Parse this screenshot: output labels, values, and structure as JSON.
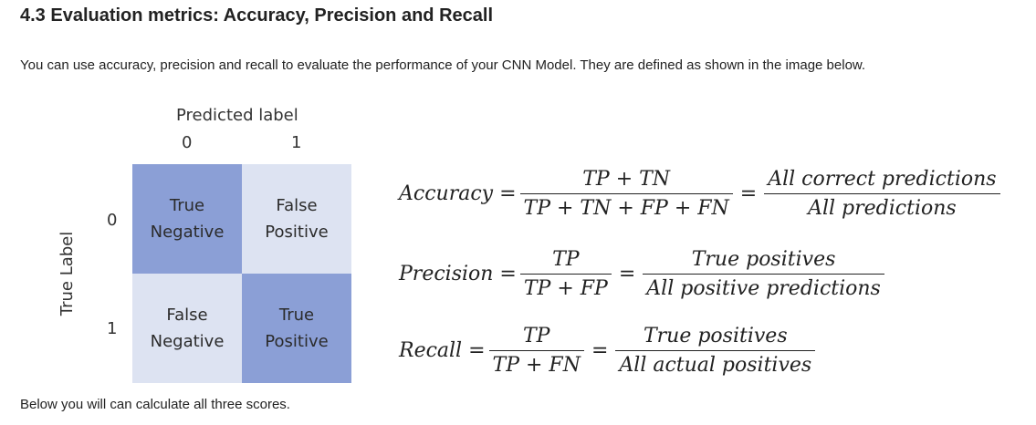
{
  "heading": "4.3 Evaluation metrics: Accuracy, Precision and Recall",
  "intro": "You can use accuracy, precision and recall to evaluate the performance of your CNN Model. They are defined as shown in the image below.",
  "matrix": {
    "predicted_label": "Predicted label",
    "true_label": "True Label",
    "col_labels": [
      "0",
      "1"
    ],
    "row_labels": [
      "0",
      "1"
    ],
    "cells": [
      [
        "True\nNegative",
        "False\nPositive"
      ],
      [
        "False\nNegative",
        "True\nPositive"
      ]
    ],
    "colors": {
      "diagonal": "#8b9fd6",
      "off_diagonal": "#dde3f2"
    }
  },
  "formulas": {
    "accuracy": {
      "name": "Accuracy =",
      "num": "TP + TN",
      "den": "TP + TN + FP + FN",
      "eq": "=",
      "num2": "All correct predictions",
      "den2": "All predictions"
    },
    "precision": {
      "name": "Precision =",
      "num": "TP",
      "den": "TP + FP",
      "eq": "=",
      "num2": "True positives",
      "den2": "All positive predictions"
    },
    "recall": {
      "name": "Recall =",
      "num": "TP",
      "den": "TP + FN",
      "eq": "=",
      "num2": "True positives",
      "den2": "All actual positives"
    }
  },
  "footer": "Below you will can calculate all three scores."
}
